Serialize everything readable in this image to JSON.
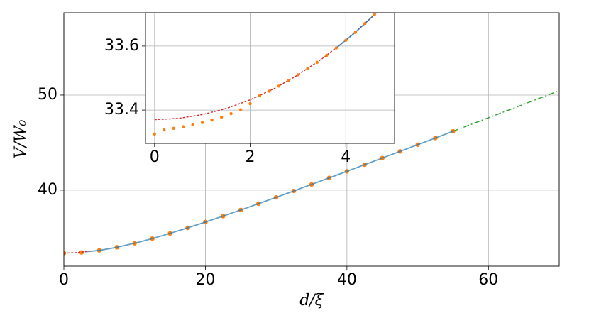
{
  "chart_data": [
    {
      "type": "line",
      "x_label": "d/ξ",
      "y_label": "V/W₀",
      "xlim": [
        0,
        70
      ],
      "ylim": [
        32.0,
        58.66
      ],
      "xticks": [
        0,
        20,
        40,
        60
      ],
      "yticks": [
        40,
        50
      ],
      "grid": true,
      "series": [
        {
          "color": "#ff7f0e",
          "marker": true,
          "linestyle": "none",
          "x": [
            0,
            2.5,
            5,
            7.5,
            10,
            12.5,
            15,
            17.5,
            20,
            22.5,
            25,
            27.5,
            30,
            32.5,
            35,
            37.5,
            40,
            42.5,
            45,
            47.5,
            50,
            52.5,
            55
          ],
          "values": [
            33.37,
            33.444,
            33.658,
            33.989,
            34.413,
            34.906,
            35.45,
            36.031,
            36.639,
            37.269,
            37.915,
            38.573,
            39.241,
            39.917,
            40.6,
            41.288,
            41.979,
            42.675,
            43.374,
            44.075,
            44.779,
            45.484,
            46.192
          ]
        },
        {
          "color": "#1f77b4",
          "marker": false,
          "linestyle": "solid",
          "x": [
            3,
            5,
            7.5,
            10,
            12.5,
            15,
            17.5,
            20,
            22.5,
            25,
            27.5,
            30,
            32.5,
            35,
            37.5,
            40,
            42.5,
            45,
            47.5,
            50,
            52.5,
            55
          ],
          "values": [
            33.51,
            33.658,
            33.989,
            34.413,
            34.906,
            35.45,
            36.031,
            36.639,
            37.269,
            37.915,
            38.573,
            39.241,
            39.917,
            40.6,
            41.288,
            41.979,
            42.675,
            43.374,
            44.075,
            44.779,
            45.484,
            46.192
          ]
        },
        {
          "color": "#d62728",
          "marker": false,
          "linestyle": "dashed",
          "x": [
            0,
            2,
            4
          ],
          "values": [
            33.37,
            33.432,
            33.618
          ]
        },
        {
          "color": "#2ca02c",
          "marker": false,
          "linestyle": "dashdot",
          "x": [
            55,
            60,
            65,
            70
          ],
          "values": [
            46.192,
            47.611,
            49.034,
            50.461
          ]
        }
      ]
    },
    {
      "type": "line",
      "xlim": [
        -0.19,
        5.02
      ],
      "ylim": [
        33.296,
        33.704
      ],
      "xticks": [
        0,
        2,
        4
      ],
      "yticks": [
        33.4,
        33.6
      ],
      "grid": true,
      "series": [
        {
          "color": "#d62728",
          "marker": false,
          "linestyle": "dashed",
          "x": [
            0,
            0.5,
            1,
            1.5,
            2,
            2.5,
            3,
            3.5,
            4,
            4.5,
            4.7
          ],
          "values": [
            33.37,
            33.374,
            33.386,
            33.405,
            33.432,
            33.467,
            33.51,
            33.56,
            33.618,
            33.684,
            33.712
          ]
        },
        {
          "color": "#1f77b4",
          "marker": false,
          "linestyle": "solid",
          "x": [
            3.8,
            4.2,
            4.7
          ],
          "values": [
            33.594,
            33.643,
            33.712
          ]
        },
        {
          "color": "#ff7f0e",
          "marker": true,
          "linestyle": "none",
          "x": [
            0,
            0.2,
            0.4,
            0.6,
            0.8,
            1.0,
            1.2,
            1.4,
            1.6,
            1.8,
            2.0,
            2.2,
            2.4,
            2.6,
            2.8,
            3.0,
            3.2,
            3.4,
            3.6,
            3.8,
            4.0,
            4.2,
            4.4,
            4.6
          ],
          "values": [
            33.325,
            33.338,
            33.343,
            33.348,
            33.354,
            33.361,
            33.369,
            33.378,
            33.389,
            33.401,
            33.42,
            33.445,
            33.459,
            33.475,
            33.492,
            33.51,
            33.529,
            33.549,
            33.571,
            33.594,
            33.618,
            33.643,
            33.67,
            33.698
          ]
        }
      ]
    }
  ]
}
